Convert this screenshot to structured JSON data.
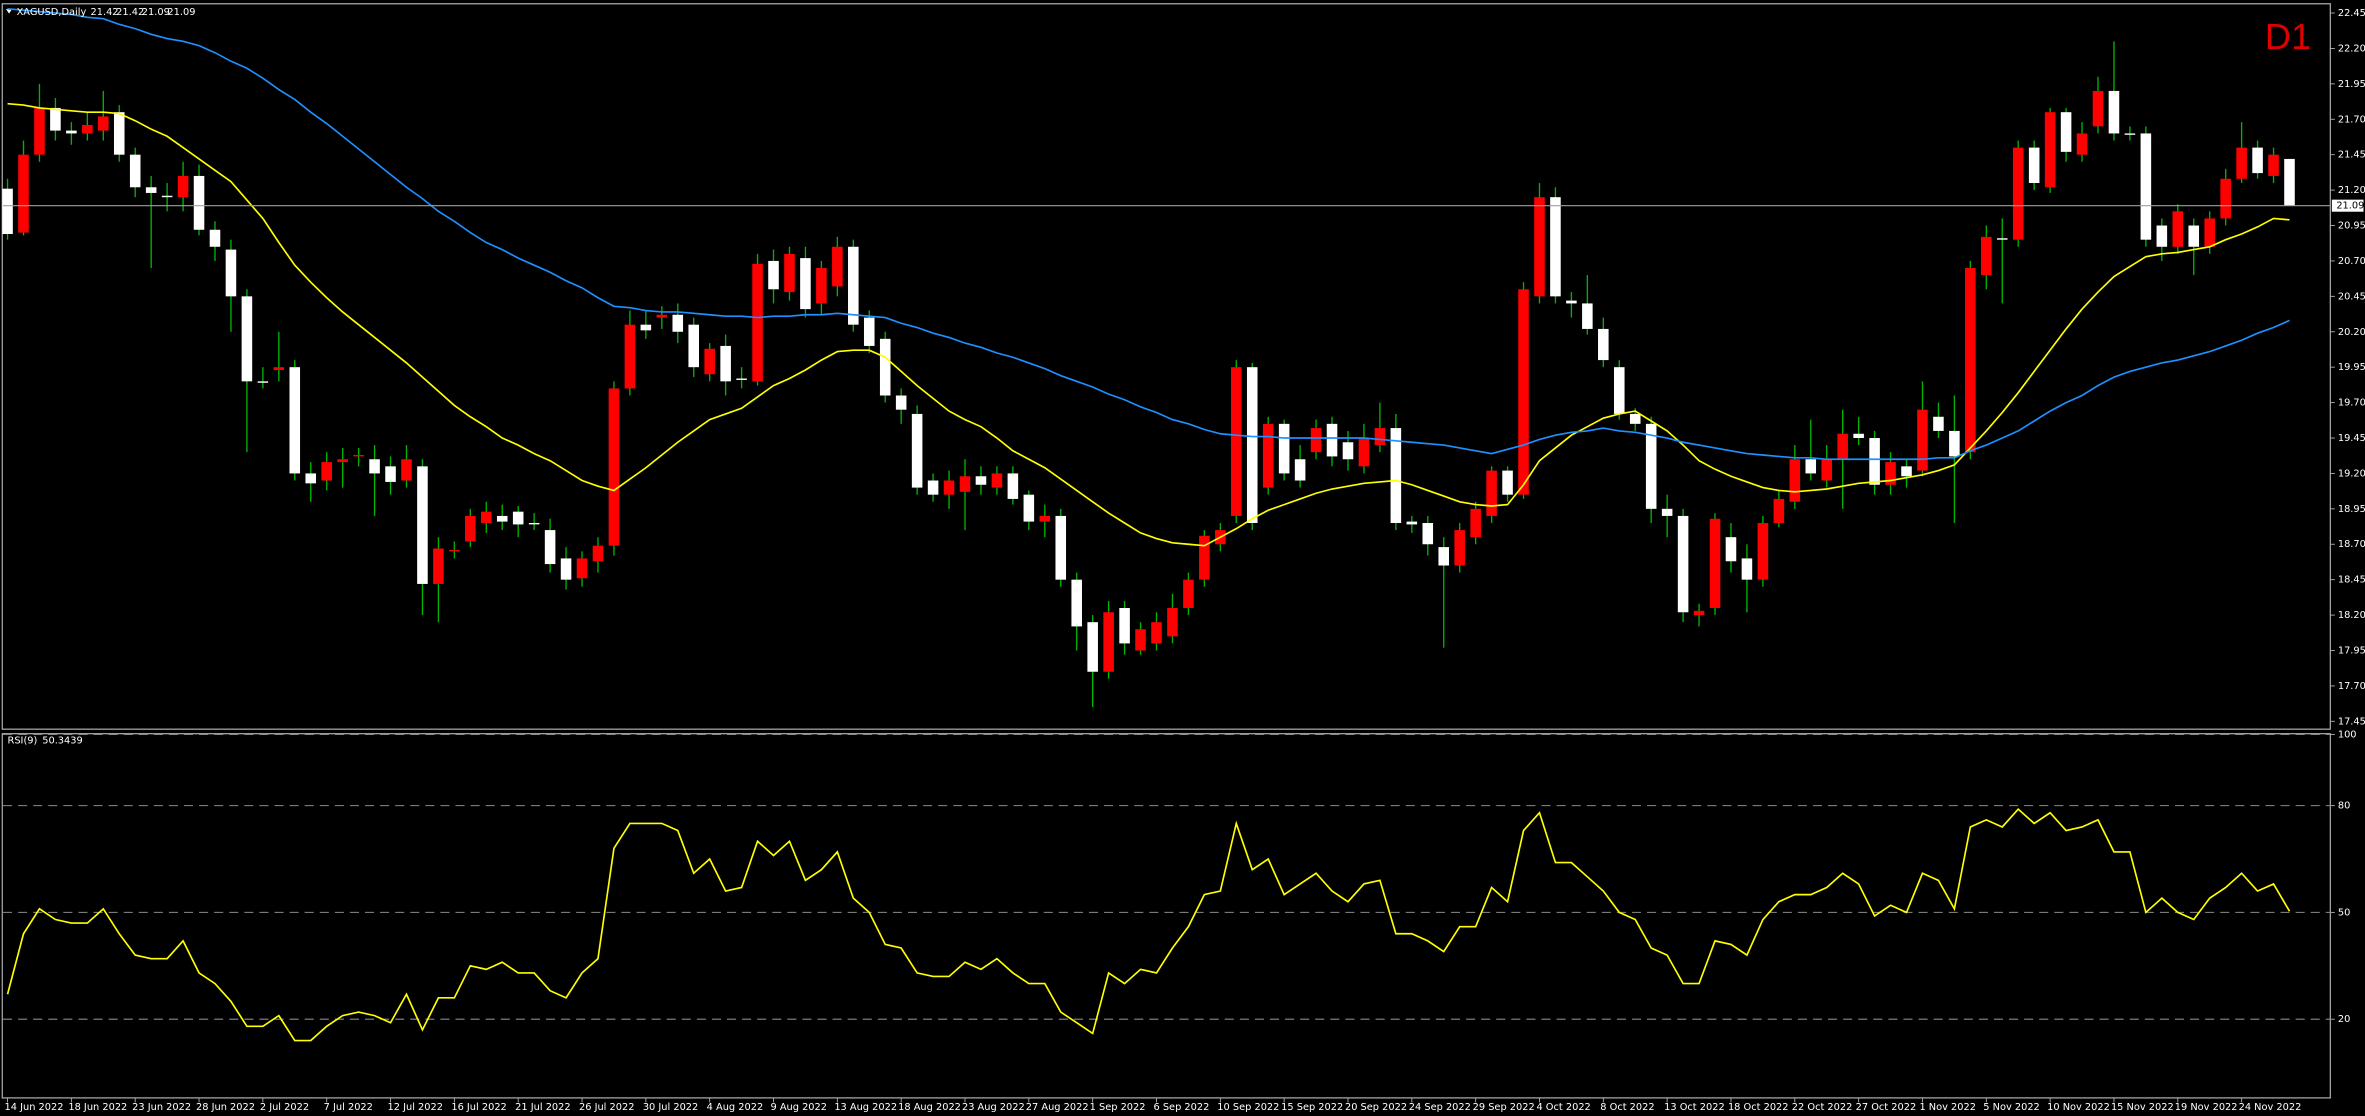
{
  "chart_data": [
    {
      "type": "candlestick",
      "title": "XAGUSD,Daily",
      "timeframe": "D1",
      "categories": [
        "14 Jun 2022",
        null,
        null,
        null,
        "18 Jun 2022",
        null,
        null,
        null,
        "23 Jun 2022",
        null,
        null,
        null,
        "28 Jun 2022",
        null,
        null,
        null,
        "2 Jul 2022",
        null,
        null,
        null,
        "7 Jul 2022",
        null,
        null,
        null,
        "12 Jul 2022",
        null,
        null,
        null,
        "16 Jul 2022",
        null,
        null,
        null,
        "21 Jul 2022",
        null,
        null,
        null,
        "26 Jul 2022",
        null,
        null,
        null,
        "30 Jul 2022",
        null,
        null,
        null,
        "4 Aug 2022",
        null,
        null,
        null,
        "9 Aug 2022",
        null,
        null,
        null,
        "13 Aug 2022",
        null,
        null,
        null,
        "18 Aug 2022",
        null,
        null,
        null,
        "23 Aug 2022",
        null,
        null,
        null,
        "27 Aug 2022",
        null,
        null,
        null,
        "1 Sep 2022",
        null,
        null,
        null,
        "6 Sep 2022",
        null,
        null,
        null,
        "10 Sep 2022",
        null,
        null,
        null,
        "15 Sep 2022",
        null,
        null,
        null,
        "20 Sep 2022",
        null,
        null,
        null,
        "24 Sep 2022",
        null,
        null,
        null,
        "29 Sep 2022",
        null,
        null,
        null,
        "4 Oct 2022",
        null,
        null,
        null,
        "8 Oct 2022",
        null,
        null,
        null,
        "13 Oct 2022",
        null,
        null,
        null,
        "18 Oct 2022",
        null,
        null,
        null,
        "22 Oct 2022",
        null,
        null,
        null,
        "27 Oct 2022",
        null,
        null,
        null,
        "1 Nov 2022",
        null,
        null,
        null,
        "5 Nov 2022",
        null,
        null,
        null,
        "10 Nov 2022",
        null,
        null,
        null,
        "15 Nov 2022",
        null,
        null,
        null,
        "19 Nov 2022",
        null,
        null,
        null,
        "24 Nov 2022",
        null,
        null,
        null
      ],
      "open": [
        21.21,
        20.9,
        21.45,
        21.78,
        21.62,
        21.6,
        21.62,
        21.75,
        21.45,
        21.22,
        21.16,
        21.15,
        21.3,
        20.92,
        20.78,
        20.45,
        19.85,
        19.93,
        19.95,
        19.2,
        19.15,
        19.28,
        19.32,
        19.3,
        19.25,
        19.15,
        19.25,
        18.42,
        18.65,
        18.72,
        18.85,
        18.9,
        18.93,
        18.85,
        18.8,
        18.6,
        18.46,
        18.58,
        18.69,
        19.8,
        20.25,
        20.3,
        20.32,
        20.25,
        19.9,
        20.1,
        19.87,
        19.85,
        20.7,
        20.48,
        20.72,
        20.4,
        20.52,
        20.8,
        20.3,
        20.15,
        19.75,
        19.62,
        19.15,
        19.05,
        19.07,
        19.18,
        19.1,
        19.2,
        19.05,
        18.86,
        18.9,
        18.45,
        18.15,
        17.8,
        18.25,
        17.95,
        18.0,
        18.05,
        18.25,
        18.45,
        18.7,
        18.9,
        19.95,
        19.1,
        19.55,
        19.3,
        19.35,
        19.55,
        19.42,
        19.25,
        19.4,
        19.52,
        18.86,
        18.85,
        18.68,
        18.55,
        18.75,
        18.9,
        19.22,
        19.05,
        20.45,
        21.15,
        20.42,
        20.4,
        20.22,
        19.95,
        19.62,
        19.55,
        18.95,
        18.9,
        18.2,
        18.25,
        18.75,
        18.6,
        18.45,
        18.85,
        19.0,
        19.3,
        19.15,
        19.3,
        19.48,
        19.45,
        19.12,
        19.25,
        19.22,
        19.6,
        19.5,
        19.35,
        20.6,
        20.86,
        20.85,
        21.5,
        21.22,
        21.75,
        21.45,
        21.65,
        21.9,
        21.6,
        21.6,
        20.95,
        20.8,
        20.95,
        20.8,
        21.0,
        21.28,
        21.5,
        21.3,
        21.42
      ],
      "high": [
        21.28,
        21.55,
        21.95,
        21.85,
        21.68,
        21.75,
        21.9,
        21.8,
        21.5,
        21.3,
        21.25,
        21.4,
        21.38,
        20.98,
        20.85,
        20.5,
        19.95,
        20.2,
        20.0,
        19.28,
        19.35,
        19.38,
        19.38,
        19.4,
        19.32,
        19.4,
        19.3,
        18.75,
        18.72,
        18.95,
        19.0,
        18.98,
        18.97,
        18.92,
        18.88,
        18.68,
        18.65,
        18.75,
        19.85,
        20.35,
        20.35,
        20.38,
        20.4,
        20.3,
        20.12,
        20.18,
        19.95,
        20.75,
        20.78,
        20.8,
        20.8,
        20.7,
        20.87,
        20.85,
        20.35,
        20.2,
        19.8,
        19.68,
        19.2,
        19.22,
        19.3,
        19.25,
        19.25,
        19.25,
        19.08,
        18.98,
        18.95,
        18.5,
        18.2,
        18.3,
        18.3,
        18.15,
        18.22,
        18.35,
        18.5,
        18.8,
        18.85,
        20.0,
        19.98,
        19.6,
        19.58,
        19.4,
        19.58,
        19.6,
        19.5,
        19.55,
        19.7,
        19.62,
        18.9,
        18.9,
        18.75,
        18.85,
        19.0,
        19.25,
        19.25,
        20.55,
        21.25,
        21.22,
        20.48,
        20.6,
        20.3,
        20.0,
        19.66,
        19.6,
        19.05,
        18.95,
        18.28,
        18.92,
        18.85,
        18.7,
        18.9,
        19.08,
        19.4,
        19.58,
        19.4,
        19.65,
        19.6,
        19.5,
        19.35,
        19.3,
        19.85,
        19.7,
        19.75,
        20.7,
        20.95,
        21.0,
        21.55,
        21.55,
        21.78,
        21.78,
        21.68,
        22.0,
        22.25,
        21.65,
        21.65,
        21.0,
        21.1,
        21.0,
        21.05,
        21.35,
        21.68,
        21.55,
        21.5,
        21.42
      ],
      "low": [
        20.85,
        20.88,
        21.4,
        21.55,
        21.52,
        21.55,
        21.55,
        21.4,
        21.15,
        20.65,
        21.05,
        21.05,
        20.88,
        20.7,
        20.2,
        19.35,
        19.8,
        19.85,
        19.15,
        19.0,
        19.08,
        19.1,
        19.25,
        18.9,
        19.05,
        19.1,
        18.2,
        18.15,
        18.6,
        18.68,
        18.78,
        18.8,
        18.75,
        18.8,
        18.5,
        18.38,
        18.4,
        18.5,
        18.62,
        19.75,
        20.15,
        20.22,
        20.12,
        19.88,
        19.85,
        19.75,
        19.8,
        19.82,
        20.4,
        20.42,
        20.3,
        20.32,
        20.45,
        20.2,
        20.05,
        19.7,
        19.55,
        19.05,
        19.0,
        18.95,
        18.8,
        19.05,
        19.05,
        18.98,
        18.8,
        18.75,
        18.4,
        17.95,
        17.55,
        17.75,
        17.92,
        17.92,
        17.95,
        18.0,
        18.2,
        18.4,
        18.65,
        18.85,
        18.8,
        19.05,
        19.15,
        19.1,
        19.3,
        19.25,
        19.22,
        19.2,
        19.35,
        18.8,
        18.78,
        18.62,
        17.97,
        18.5,
        18.7,
        18.85,
        19.0,
        19.02,
        20.4,
        20.4,
        20.3,
        20.18,
        19.95,
        19.58,
        19.5,
        18.85,
        18.75,
        18.15,
        18.12,
        18.2,
        18.5,
        18.22,
        18.4,
        18.82,
        18.95,
        19.15,
        19.1,
        18.95,
        19.4,
        19.05,
        19.05,
        19.1,
        19.18,
        19.45,
        18.85,
        19.3,
        20.5,
        20.4,
        20.8,
        21.2,
        21.18,
        21.4,
        21.4,
        21.6,
        21.55,
        21.55,
        20.8,
        20.7,
        20.75,
        20.6,
        20.75,
        20.95,
        21.25,
        21.28,
        21.25,
        21.09
      ],
      "close": [
        20.89,
        21.45,
        21.78,
        21.62,
        21.6,
        21.66,
        21.72,
        21.45,
        21.22,
        21.18,
        21.15,
        21.3,
        20.92,
        20.8,
        20.45,
        19.85,
        19.84,
        19.95,
        19.2,
        19.13,
        19.28,
        19.3,
        19.33,
        19.2,
        19.14,
        19.3,
        18.42,
        18.67,
        18.66,
        18.9,
        18.93,
        18.86,
        18.84,
        18.85,
        18.56,
        18.45,
        18.6,
        18.69,
        19.8,
        20.25,
        20.21,
        20.32,
        20.2,
        19.95,
        20.08,
        19.85,
        19.86,
        20.68,
        20.5,
        20.75,
        20.36,
        20.65,
        20.8,
        20.25,
        20.1,
        19.75,
        19.65,
        19.1,
        19.05,
        19.15,
        19.18,
        19.12,
        19.2,
        19.02,
        18.86,
        18.9,
        18.45,
        18.12,
        17.8,
        18.22,
        18.0,
        18.1,
        18.15,
        18.25,
        18.45,
        18.76,
        18.8,
        19.95,
        18.85,
        19.55,
        19.2,
        19.15,
        19.52,
        19.32,
        19.3,
        19.45,
        19.52,
        18.85,
        18.84,
        18.7,
        18.55,
        18.8,
        18.95,
        19.22,
        19.05,
        20.5,
        21.15,
        20.45,
        20.4,
        20.22,
        20.0,
        19.62,
        19.55,
        18.95,
        18.9,
        18.22,
        18.23,
        18.88,
        18.58,
        18.45,
        18.85,
        19.02,
        19.3,
        19.2,
        19.3,
        19.48,
        19.45,
        19.12,
        19.28,
        19.18,
        19.65,
        19.5,
        19.32,
        20.65,
        20.87,
        20.85,
        21.5,
        21.25,
        21.75,
        21.47,
        21.6,
        21.9,
        21.6,
        21.6,
        20.85,
        20.8,
        21.05,
        20.8,
        21.0,
        21.28,
        21.5,
        21.32,
        21.45,
        21.09
      ],
      "up_color": "#ff0000",
      "down_color": "#ffffff",
      "wick_color": "#00b400",
      "series": [
        {
          "color": "#ffff00",
          "values": [
            21.81,
            21.8,
            21.78,
            21.77,
            21.76,
            21.75,
            21.75,
            21.74,
            21.69,
            21.63,
            21.58,
            21.5,
            21.42,
            21.34,
            21.26,
            21.13,
            21.0,
            20.83,
            20.67,
            20.55,
            20.44,
            20.34,
            20.25,
            20.16,
            20.07,
            19.98,
            19.88,
            19.78,
            19.68,
            19.6,
            19.53,
            19.45,
            19.4,
            19.34,
            19.29,
            19.22,
            19.15,
            19.11,
            19.08,
            19.16,
            19.24,
            19.33,
            19.42,
            19.5,
            19.58,
            19.62,
            19.66,
            19.74,
            19.82,
            19.87,
            19.93,
            20.0,
            20.06,
            20.07,
            20.07,
            20.02,
            19.92,
            19.82,
            19.73,
            19.64,
            19.58,
            19.53,
            19.45,
            19.36,
            19.3,
            19.24,
            19.16,
            19.08,
            19.0,
            18.92,
            18.85,
            18.78,
            18.74,
            18.71,
            18.7,
            18.69,
            18.75,
            18.81,
            18.88,
            18.94,
            18.98,
            19.02,
            19.06,
            19.09,
            19.11,
            19.13,
            19.14,
            19.15,
            19.12,
            19.08,
            19.04,
            19.0,
            18.98,
            18.97,
            18.98,
            19.12,
            19.29,
            19.38,
            19.47,
            19.53,
            19.59,
            19.62,
            19.64,
            19.57,
            19.5,
            19.4,
            19.29,
            19.23,
            19.18,
            19.14,
            19.1,
            19.08,
            19.07,
            19.08,
            19.09,
            19.11,
            19.13,
            19.14,
            19.15,
            19.17,
            19.19,
            19.22,
            19.26,
            19.38,
            19.5,
            19.63,
            19.77,
            19.92,
            20.07,
            20.22,
            20.36,
            20.48,
            20.59,
            20.66,
            20.73,
            20.75,
            20.76,
            20.78,
            20.8,
            20.85,
            20.89,
            20.94,
            21.0,
            20.99
          ]
        },
        {
          "color": "#1e90ff",
          "values": [
            22.48,
            22.47,
            22.46,
            22.45,
            22.44,
            22.42,
            22.41,
            22.37,
            22.34,
            22.3,
            22.27,
            22.25,
            22.22,
            22.17,
            22.11,
            22.06,
            21.99,
            21.91,
            21.84,
            21.75,
            21.67,
            21.58,
            21.49,
            21.4,
            21.31,
            21.22,
            21.14,
            21.05,
            20.98,
            20.9,
            20.83,
            20.78,
            20.72,
            20.67,
            20.62,
            20.56,
            20.51,
            20.44,
            20.38,
            20.37,
            20.35,
            20.34,
            20.34,
            20.33,
            20.32,
            20.31,
            20.31,
            20.3,
            20.31,
            20.31,
            20.32,
            20.32,
            20.33,
            20.32,
            20.31,
            20.3,
            20.26,
            20.23,
            20.19,
            20.16,
            20.12,
            20.09,
            20.05,
            20.02,
            19.98,
            19.94,
            19.89,
            19.85,
            19.81,
            19.76,
            19.72,
            19.67,
            19.63,
            19.58,
            19.55,
            19.51,
            19.48,
            19.47,
            19.46,
            19.46,
            19.45,
            19.45,
            19.45,
            19.45,
            19.45,
            19.45,
            19.44,
            19.43,
            19.42,
            19.41,
            19.4,
            19.38,
            19.36,
            19.34,
            19.37,
            19.4,
            19.44,
            19.47,
            19.49,
            19.5,
            19.52,
            19.5,
            19.49,
            19.47,
            19.45,
            19.42,
            19.4,
            19.38,
            19.36,
            19.34,
            19.33,
            19.32,
            19.31,
            19.31,
            19.3,
            19.3,
            19.3,
            19.3,
            19.3,
            19.3,
            19.3,
            19.31,
            19.31,
            19.36,
            19.4,
            19.45,
            19.5,
            19.57,
            19.64,
            19.7,
            19.75,
            19.82,
            19.88,
            19.92,
            19.95,
            19.98,
            20.0,
            20.03,
            20.06,
            20.1,
            20.14,
            20.19,
            20.23,
            20.28
          ]
        }
      ],
      "ylim": [
        17.4,
        22.51
      ],
      "yticks": [
        22.45,
        {
          "value": 22.2,
          "label": "22.20"
        },
        21.95,
        {
          "value": 21.7,
          "label": "21.70"
        },
        21.45,
        {
          "value": 21.2,
          "label": "21.20"
        },
        20.95,
        {
          "value": 20.7,
          "label": "20.70"
        },
        20.45,
        {
          "value": 20.2,
          "label": "20.20"
        },
        19.95,
        {
          "value": 19.7,
          "label": "19.70"
        },
        19.45,
        {
          "value": 19.2,
          "label": "19.20"
        },
        18.95,
        {
          "value": 18.7,
          "label": "18.70"
        },
        18.45,
        {
          "value": 18.2,
          "label": "18.20"
        },
        17.95,
        {
          "value": 17.7,
          "label": "17.70"
        },
        17.45
      ]
    },
    {
      "type": "line",
      "title": "RSI(9)",
      "color": "#ffff00",
      "values": [
        27,
        44,
        51,
        48,
        47,
        47,
        51,
        44,
        38,
        37,
        37,
        42,
        33,
        30,
        25,
        18,
        18,
        21,
        14,
        14,
        18,
        21,
        22,
        21,
        19,
        27,
        17,
        26,
        26,
        35,
        34,
        36,
        33,
        33,
        28,
        26,
        33,
        37,
        68,
        75,
        75,
        75,
        73,
        61,
        65,
        56,
        57,
        70,
        66,
        70,
        59,
        62,
        67,
        54,
        50,
        41,
        40,
        33,
        32,
        32,
        36,
        34,
        37,
        33,
        30,
        30,
        22,
        19,
        16,
        33,
        30,
        34,
        33,
        40,
        46,
        55,
        56,
        75,
        62,
        65,
        55,
        58,
        61,
        56,
        53,
        58,
        59,
        44,
        44,
        42,
        39,
        46,
        46,
        57,
        53,
        73,
        78,
        64,
        64,
        60,
        56,
        50,
        48,
        40,
        38,
        30,
        30,
        42,
        41,
        38,
        48,
        53,
        55,
        55,
        57,
        61,
        58,
        49,
        52,
        50,
        61,
        59,
        51,
        74,
        76,
        74,
        79,
        75,
        78,
        73,
        74,
        76,
        67,
        67,
        50,
        54,
        50,
        48,
        54,
        57,
        61,
        56,
        58,
        50.3439
      ],
      "ylim": [
        0,
        100
      ],
      "yticks": [
        20,
        50,
        80,
        100
      ],
      "grid": true
    }
  ]
}
